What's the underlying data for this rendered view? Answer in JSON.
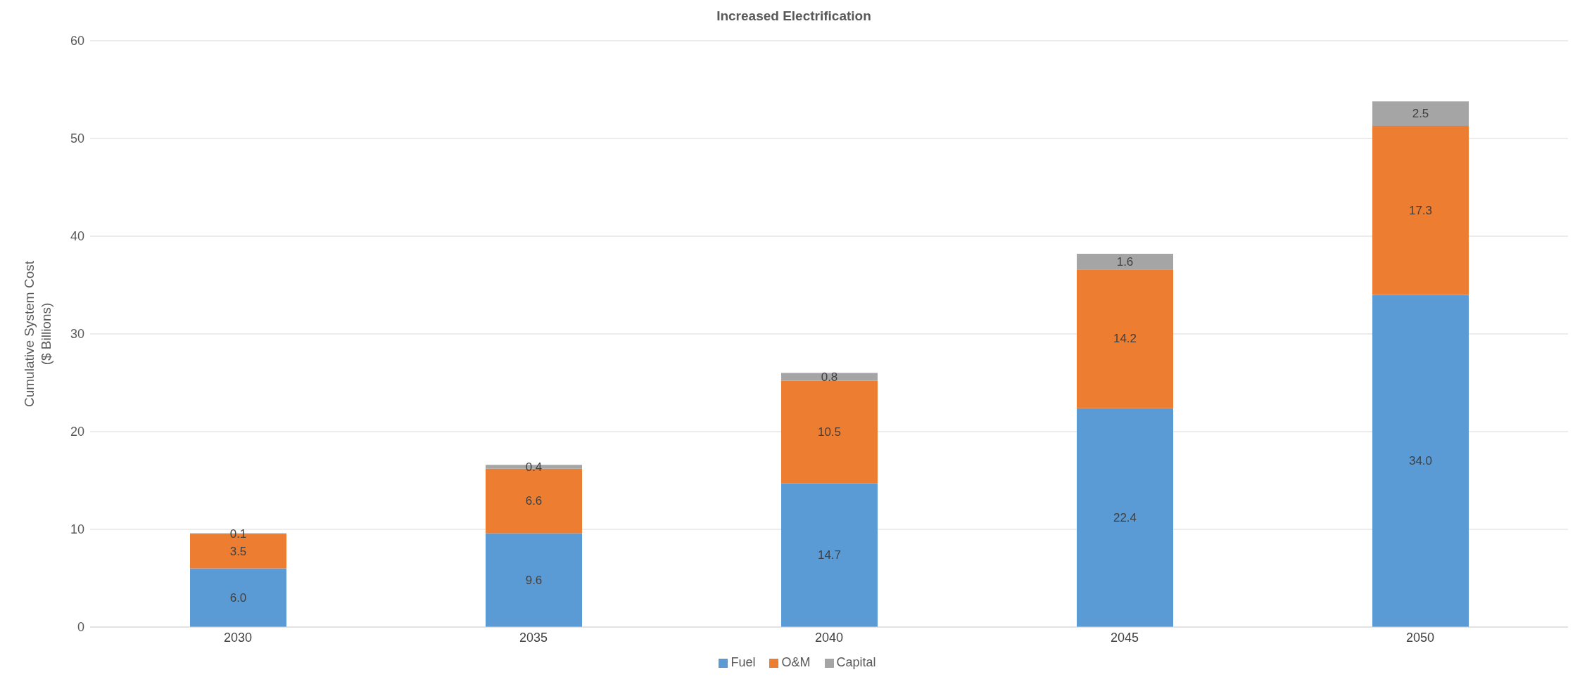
{
  "chart_data": {
    "type": "bar",
    "title": "Increased Electrification",
    "ylabel": "Cumulative System Cost\n($ Billions)",
    "categories": [
      "2030",
      "2035",
      "2040",
      "2045",
      "2050"
    ],
    "stacked": true,
    "series": [
      {
        "name": "Fuel",
        "color": "#5b9bd5",
        "values": [
          6.0,
          9.6,
          14.7,
          22.4,
          34.0
        ],
        "value_labels": [
          "6.0",
          "9.6",
          "14.7",
          "22.4",
          "34.0"
        ]
      },
      {
        "name": "O&M",
        "color": "#ed7d31",
        "values": [
          3.5,
          6.6,
          10.5,
          14.2,
          17.3
        ],
        "value_labels": [
          "3.5",
          "6.6",
          "10.5",
          "14.2",
          "17.3"
        ]
      },
      {
        "name": "Capital",
        "color": "#a5a5a5",
        "values": [
          0.1,
          0.4,
          0.8,
          1.6,
          2.5
        ],
        "value_labels": [
          "0.1",
          "0.4",
          "0.8",
          "1.6",
          "2.5"
        ]
      }
    ],
    "ylim": [
      0,
      60
    ],
    "yticks": [
      0,
      10,
      20,
      30,
      40,
      50,
      60
    ],
    "grid": "y",
    "legend": "bottom"
  }
}
